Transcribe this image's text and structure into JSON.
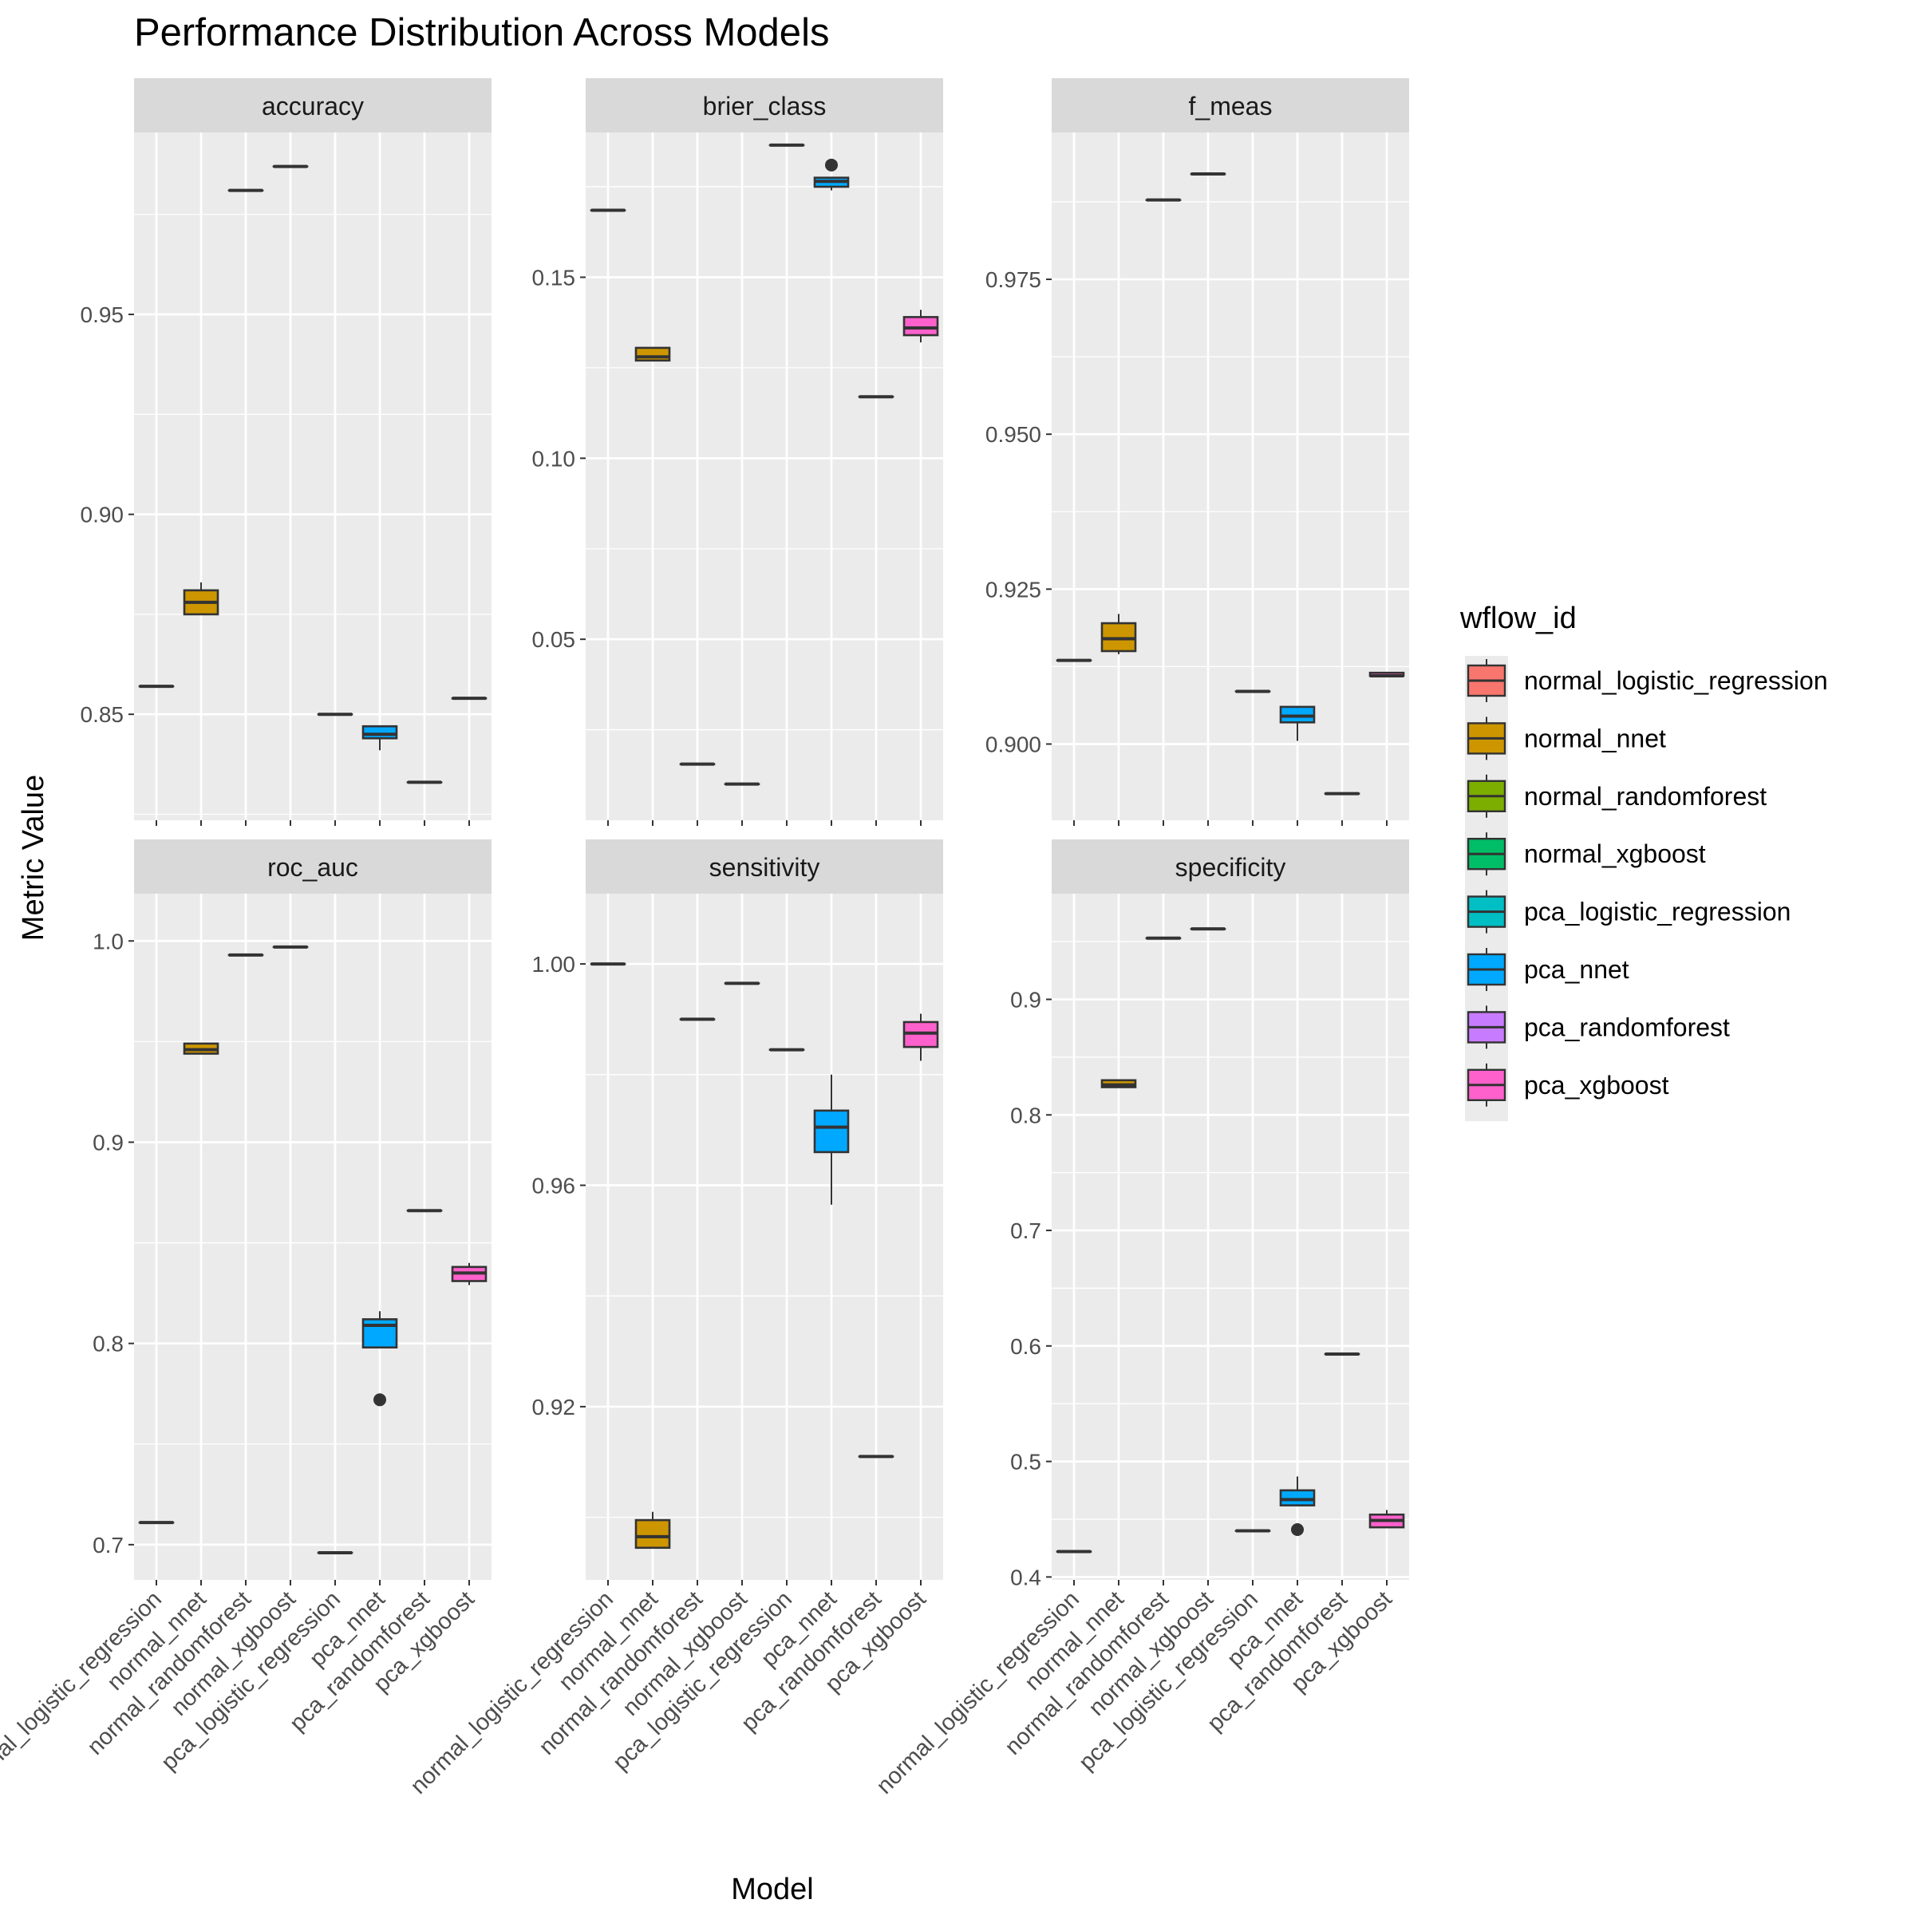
{
  "chart_data": {
    "type": "boxplot",
    "title": "Performance Distribution Across Models",
    "xlabel": "Model",
    "ylabel": "Metric Value",
    "grid": true,
    "legend_placement": "right",
    "legend_title": "wflow_id",
    "categories": [
      "normal_logistic_regression",
      "normal_nnet",
      "normal_randomforest",
      "normal_xgboost",
      "pca_logistic_regression",
      "pca_nnet",
      "pca_randomforest",
      "pca_xgboost"
    ],
    "colors": [
      "#F8766D",
      "#CD9600",
      "#7CAE00",
      "#00BE67",
      "#00BFC4",
      "#00A9FF",
      "#C77CFF",
      "#FF61CC"
    ],
    "panels": [
      {
        "name": "accuracy",
        "ylim": [
          0.8235,
          0.9955
        ],
        "ticks": [
          0.85,
          0.9,
          0.95
        ],
        "tick_labels": [
          "0.85",
          "0.90",
          "0.95"
        ],
        "boxes": [
          {
            "min": 0.857,
            "q1": 0.857,
            "median": 0.857,
            "q3": 0.857,
            "max": 0.857,
            "outliers": []
          },
          {
            "min": 0.875,
            "q1": 0.875,
            "median": 0.878,
            "q3": 0.881,
            "max": 0.883,
            "outliers": []
          },
          {
            "min": 0.981,
            "q1": 0.981,
            "median": 0.981,
            "q3": 0.981,
            "max": 0.981,
            "outliers": []
          },
          {
            "min": 0.987,
            "q1": 0.987,
            "median": 0.987,
            "q3": 0.987,
            "max": 0.987,
            "outliers": []
          },
          {
            "min": 0.85,
            "q1": 0.85,
            "median": 0.85,
            "q3": 0.85,
            "max": 0.85,
            "outliers": []
          },
          {
            "min": 0.841,
            "q1": 0.844,
            "median": 0.845,
            "q3": 0.847,
            "max": 0.847,
            "outliers": []
          },
          {
            "min": 0.833,
            "q1": 0.833,
            "median": 0.833,
            "q3": 0.833,
            "max": 0.833,
            "outliers": []
          },
          {
            "min": 0.854,
            "q1": 0.854,
            "median": 0.854,
            "q3": 0.854,
            "max": 0.854,
            "outliers": []
          }
        ]
      },
      {
        "name": "brier_class",
        "ylim": [
          0.0,
          0.19
        ],
        "ticks": [
          0.05,
          0.1,
          0.15
        ],
        "tick_labels": [
          "0.05",
          "0.10",
          "0.15"
        ],
        "boxes": [
          {
            "min": 0.1685,
            "q1": 0.1685,
            "median": 0.1685,
            "q3": 0.1685,
            "max": 0.1685,
            "outliers": []
          },
          {
            "min": 0.127,
            "q1": 0.127,
            "median": 0.128,
            "q3": 0.1305,
            "max": 0.1305,
            "outliers": []
          },
          {
            "min": 0.0155,
            "q1": 0.0155,
            "median": 0.0155,
            "q3": 0.0155,
            "max": 0.0155,
            "outliers": []
          },
          {
            "min": 0.01,
            "q1": 0.01,
            "median": 0.01,
            "q3": 0.01,
            "max": 0.01,
            "outliers": []
          },
          {
            "min": 0.1865,
            "q1": 0.1865,
            "median": 0.1865,
            "q3": 0.1865,
            "max": 0.1865,
            "outliers": []
          },
          {
            "min": 0.174,
            "q1": 0.175,
            "median": 0.1765,
            "q3": 0.1775,
            "max": 0.1775,
            "outliers": [
              0.181
            ]
          },
          {
            "min": 0.117,
            "q1": 0.117,
            "median": 0.117,
            "q3": 0.117,
            "max": 0.117,
            "outliers": []
          },
          {
            "min": 0.132,
            "q1": 0.134,
            "median": 0.136,
            "q3": 0.139,
            "max": 0.141,
            "outliers": []
          }
        ]
      },
      {
        "name": "f_meas",
        "ylim": [
          0.8877,
          0.9987
        ],
        "ticks": [
          0.9,
          0.925,
          0.95,
          0.975
        ],
        "tick_labels": [
          "0.900",
          "0.925",
          "0.950",
          "0.975"
        ],
        "boxes": [
          {
            "min": 0.9135,
            "q1": 0.9135,
            "median": 0.9135,
            "q3": 0.9135,
            "max": 0.9135,
            "outliers": []
          },
          {
            "min": 0.9145,
            "q1": 0.915,
            "median": 0.917,
            "q3": 0.9195,
            "max": 0.921,
            "outliers": []
          },
          {
            "min": 0.9878,
            "q1": 0.9878,
            "median": 0.9878,
            "q3": 0.9878,
            "max": 0.9878,
            "outliers": []
          },
          {
            "min": 0.992,
            "q1": 0.992,
            "median": 0.992,
            "q3": 0.992,
            "max": 0.992,
            "outliers": []
          },
          {
            "min": 0.9085,
            "q1": 0.9085,
            "median": 0.9085,
            "q3": 0.9085,
            "max": 0.9085,
            "outliers": []
          },
          {
            "min": 0.9005,
            "q1": 0.9035,
            "median": 0.9045,
            "q3": 0.906,
            "max": 0.906,
            "outliers": []
          },
          {
            "min": 0.892,
            "q1": 0.892,
            "median": 0.892,
            "q3": 0.892,
            "max": 0.892,
            "outliers": []
          },
          {
            "min": 0.911,
            "q1": 0.911,
            "median": 0.911,
            "q3": 0.9115,
            "max": 0.9115,
            "outliers": []
          }
        ]
      },
      {
        "name": "roc_auc",
        "ylim": [
          0.6825,
          1.0235
        ],
        "ticks": [
          0.7,
          0.8,
          0.9,
          1.0
        ],
        "tick_labels": [
          "0.7",
          "0.8",
          "0.9",
          "1.0"
        ],
        "boxes": [
          {
            "min": 0.711,
            "q1": 0.711,
            "median": 0.711,
            "q3": 0.711,
            "max": 0.711,
            "outliers": []
          },
          {
            "min": 0.944,
            "q1": 0.944,
            "median": 0.946,
            "q3": 0.949,
            "max": 0.949,
            "outliers": []
          },
          {
            "min": 0.993,
            "q1": 0.993,
            "median": 0.993,
            "q3": 0.993,
            "max": 0.993,
            "outliers": []
          },
          {
            "min": 0.997,
            "q1": 0.997,
            "median": 0.997,
            "q3": 0.997,
            "max": 0.997,
            "outliers": []
          },
          {
            "min": 0.696,
            "q1": 0.696,
            "median": 0.696,
            "q3": 0.696,
            "max": 0.696,
            "outliers": []
          },
          {
            "min": 0.798,
            "q1": 0.798,
            "median": 0.809,
            "q3": 0.812,
            "max": 0.816,
            "outliers": [
              0.772
            ]
          },
          {
            "min": 0.866,
            "q1": 0.866,
            "median": 0.866,
            "q3": 0.866,
            "max": 0.866,
            "outliers": []
          },
          {
            "min": 0.829,
            "q1": 0.831,
            "median": 0.835,
            "q3": 0.838,
            "max": 0.84,
            "outliers": []
          }
        ]
      },
      {
        "name": "sensitivity",
        "ylim": [
          0.8887,
          1.0127
        ],
        "ticks": [
          0.92,
          0.96,
          1.0
        ],
        "tick_labels": [
          "0.92",
          "0.96",
          "1.00"
        ],
        "boxes": [
          {
            "min": 1.0,
            "q1": 1.0,
            "median": 1.0,
            "q3": 1.0,
            "max": 1.0,
            "outliers": []
          },
          {
            "min": 0.8945,
            "q1": 0.8945,
            "median": 0.8965,
            "q3": 0.8995,
            "max": 0.901,
            "outliers": []
          },
          {
            "min": 0.99,
            "q1": 0.99,
            "median": 0.99,
            "q3": 0.99,
            "max": 0.99,
            "outliers": []
          },
          {
            "min": 0.9965,
            "q1": 0.9965,
            "median": 0.9965,
            "q3": 0.9965,
            "max": 0.9965,
            "outliers": []
          },
          {
            "min": 0.9845,
            "q1": 0.9845,
            "median": 0.9845,
            "q3": 0.9845,
            "max": 0.9845,
            "outliers": []
          },
          {
            "min": 0.9565,
            "q1": 0.966,
            "median": 0.9705,
            "q3": 0.9735,
            "max": 0.98,
            "outliers": []
          },
          {
            "min": 0.911,
            "q1": 0.911,
            "median": 0.911,
            "q3": 0.911,
            "max": 0.911,
            "outliers": []
          },
          {
            "min": 0.9825,
            "q1": 0.985,
            "median": 0.9875,
            "q3": 0.9895,
            "max": 0.991,
            "outliers": []
          }
        ]
      },
      {
        "name": "specificity",
        "ylim": [
          0.3975,
          0.9915
        ],
        "ticks": [
          0.4,
          0.5,
          0.6,
          0.7,
          0.8,
          0.9
        ],
        "tick_labels": [
          "0.4",
          "0.5",
          "0.6",
          "0.7",
          "0.8",
          "0.9"
        ],
        "boxes": [
          {
            "min": 0.422,
            "q1": 0.422,
            "median": 0.422,
            "q3": 0.422,
            "max": 0.422,
            "outliers": []
          },
          {
            "min": 0.824,
            "q1": 0.824,
            "median": 0.826,
            "q3": 0.83,
            "max": 0.83,
            "outliers": []
          },
          {
            "min": 0.953,
            "q1": 0.953,
            "median": 0.953,
            "q3": 0.953,
            "max": 0.953,
            "outliers": []
          },
          {
            "min": 0.961,
            "q1": 0.961,
            "median": 0.961,
            "q3": 0.961,
            "max": 0.961,
            "outliers": []
          },
          {
            "min": 0.44,
            "q1": 0.44,
            "median": 0.44,
            "q3": 0.44,
            "max": 0.44,
            "outliers": []
          },
          {
            "min": 0.462,
            "q1": 0.462,
            "median": 0.467,
            "q3": 0.475,
            "max": 0.487,
            "outliers": [
              0.441
            ]
          },
          {
            "min": 0.593,
            "q1": 0.593,
            "median": 0.593,
            "q3": 0.593,
            "max": 0.593,
            "outliers": []
          },
          {
            "min": 0.443,
            "q1": 0.443,
            "median": 0.449,
            "q3": 0.454,
            "max": 0.458,
            "outliers": []
          }
        ]
      }
    ]
  }
}
